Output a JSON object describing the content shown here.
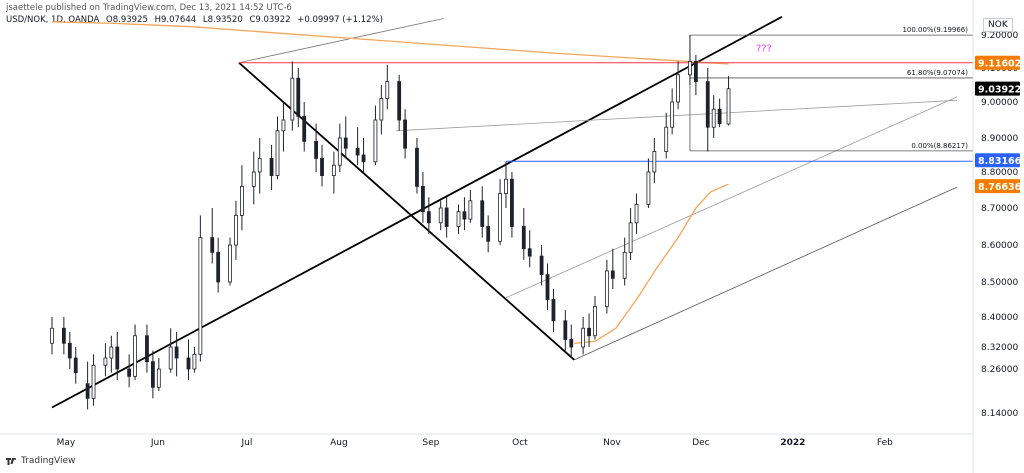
{
  "header": {
    "published": "jsaettele published on TradingView.com, Dec 13, 2021 14:52 UTC-6"
  },
  "symbol": {
    "name": "USD/NOK, 1D, OANDA",
    "open": "O8.93925",
    "high": "H9.07644",
    "low": "L8.93520",
    "close": "C9.03922",
    "change": "+0.09997 (+1.12%)"
  },
  "brand": {
    "logo_text": "TradingView"
  },
  "chart_data": {
    "type": "candlestick",
    "title": "",
    "currency_label": "NOK",
    "x_axis": {
      "labels": [
        "May",
        "Jun",
        "Jul",
        "Aug",
        "Sep",
        "Oct",
        "Nov",
        "Dec",
        "2022",
        "Feb"
      ],
      "bold_labels": [
        "2022"
      ]
    },
    "y_axis": {
      "ticks": [
        9.2,
        9.1,
        9.0,
        8.9,
        8.8,
        8.7,
        8.6,
        8.5,
        8.4,
        8.32,
        8.26,
        8.14
      ],
      "tick_labels": [
        "9.20000",
        "9.10000",
        "9.00000",
        "8.90000",
        "8.80000",
        "8.70000",
        "8.60000",
        "8.50000",
        "8.40000",
        "8.32000",
        "8.26000",
        "8.14000"
      ],
      "range": [
        8.08,
        9.25
      ]
    },
    "price_tags": [
      {
        "value": 9.11602,
        "label": "9.11602",
        "color": "#f57c00"
      },
      {
        "value": 9.03922,
        "label": "9.03922",
        "color": "#000000"
      },
      {
        "value": 8.83166,
        "label": "8.83166",
        "color": "#2962ff"
      },
      {
        "value": 8.76636,
        "label": "8.76636",
        "color": "#f57c00"
      }
    ],
    "horizontal_lines": [
      {
        "value": 9.11602,
        "color": "#f23645",
        "from": "2021-07-01"
      },
      {
        "value": 8.83166,
        "color": "#2962ff",
        "from": "2021-09-29"
      }
    ],
    "fibonacci": {
      "from_date": "2021-11-30",
      "levels": [
        {
          "label": "100.00%(9.19966)",
          "value": 9.19966
        },
        {
          "label": "61.80%(9.07074)",
          "value": 9.07074
        },
        {
          "label": "0.00%(8.86217)",
          "value": 8.86217
        }
      ]
    },
    "annotation": {
      "text": "???",
      "color": "#e040fb"
    },
    "trendlines": [
      {
        "name": "",
        "points": [
          [
            "2021-04-29",
            8.155
          ],
          [
            "2021-12-31",
            9.255
          ]
        ],
        "color": "#000000",
        "width": 1.8
      },
      {
        "name": "",
        "points": [
          [
            "2021-07-01",
            9.116
          ],
          [
            "2021-10-22",
            8.285
          ]
        ],
        "color": "#000000",
        "width": 1.8
      },
      {
        "name": "",
        "points": [
          [
            "2021-07-01",
            9.116
          ],
          [
            "2021-09-08",
            9.25
          ]
        ],
        "color": "#777777",
        "width": 0.8
      },
      {
        "name": "",
        "points": [
          [
            "2021-08-23",
            8.92
          ],
          [
            "2022-02-28",
            9.005
          ]
        ],
        "color": "#999999",
        "width": 0.8
      },
      {
        "name": "",
        "points": [
          [
            "2021-09-29",
            8.455
          ],
          [
            "2022-02-28",
            9.015
          ]
        ],
        "color": "#999999",
        "width": 0.8
      },
      {
        "name": "",
        "points": [
          [
            "2021-10-22",
            8.285
          ],
          [
            "2022-02-28",
            8.758
          ]
        ],
        "color": "#555555",
        "width": 0.8
      }
    ],
    "moving_averages": [
      {
        "name": "",
        "color": "#f5a55a",
        "points": [
          [
            "2021-04-29",
            9.24
          ],
          [
            "2021-05-20",
            9.235
          ],
          [
            "2021-06-15",
            9.225
          ],
          [
            "2021-07-15",
            9.205
          ],
          [
            "2021-08-15",
            9.185
          ],
          [
            "2021-09-15",
            9.165
          ],
          [
            "2021-10-15",
            9.145
          ],
          [
            "2021-11-15",
            9.128
          ],
          [
            "2021-12-13",
            9.112
          ]
        ]
      },
      {
        "name": "",
        "color": "#f5a55a",
        "points": [
          [
            "2021-10-22",
            8.33
          ],
          [
            "2021-10-29",
            8.335
          ],
          [
            "2021-11-05",
            8.37
          ],
          [
            "2021-11-12",
            8.45
          ],
          [
            "2021-11-19",
            8.54
          ],
          [
            "2021-11-26",
            8.62
          ],
          [
            "2021-12-02",
            8.7
          ],
          [
            "2021-12-07",
            8.745
          ],
          [
            "2021-12-13",
            8.766
          ]
        ]
      }
    ],
    "candles": [
      {
        "date": "2021-04-29",
        "o": 8.33,
        "h": 8.4,
        "l": 8.3,
        "c": 8.37
      },
      {
        "date": "2021-05-03",
        "o": 8.37,
        "h": 8.4,
        "l": 8.3,
        "c": 8.33
      },
      {
        "date": "2021-05-05",
        "o": 8.33,
        "h": 8.36,
        "l": 8.26,
        "c": 8.29
      },
      {
        "date": "2021-05-07",
        "o": 8.29,
        "h": 8.32,
        "l": 8.22,
        "c": 8.25
      },
      {
        "date": "2021-05-11",
        "o": 8.22,
        "h": 8.28,
        "l": 8.15,
        "c": 8.18
      },
      {
        "date": "2021-05-13",
        "o": 8.18,
        "h": 8.3,
        "l": 8.16,
        "c": 8.27
      },
      {
        "date": "2021-05-17",
        "o": 8.27,
        "h": 8.33,
        "l": 8.24,
        "c": 8.29
      },
      {
        "date": "2021-05-19",
        "o": 8.29,
        "h": 8.35,
        "l": 8.25,
        "c": 8.32
      },
      {
        "date": "2021-05-21",
        "o": 8.32,
        "h": 8.36,
        "l": 8.23,
        "c": 8.26
      },
      {
        "date": "2021-05-25",
        "o": 8.26,
        "h": 8.3,
        "l": 8.21,
        "c": 8.24
      },
      {
        "date": "2021-05-27",
        "o": 8.24,
        "h": 8.38,
        "l": 8.23,
        "c": 8.35
      },
      {
        "date": "2021-05-31",
        "o": 8.35,
        "h": 8.38,
        "l": 8.25,
        "c": 8.28
      },
      {
        "date": "2021-06-02",
        "o": 8.28,
        "h": 8.31,
        "l": 8.18,
        "c": 8.21
      },
      {
        "date": "2021-06-04",
        "o": 8.21,
        "h": 8.29,
        "l": 8.2,
        "c": 8.26
      },
      {
        "date": "2021-06-08",
        "o": 8.26,
        "h": 8.37,
        "l": 8.25,
        "c": 8.32
      },
      {
        "date": "2021-06-10",
        "o": 8.32,
        "h": 8.36,
        "l": 8.24,
        "c": 8.29
      },
      {
        "date": "2021-06-14",
        "o": 8.29,
        "h": 8.34,
        "l": 8.23,
        "c": 8.26
      },
      {
        "date": "2021-06-16",
        "o": 8.26,
        "h": 8.32,
        "l": 8.25,
        "c": 8.3
      },
      {
        "date": "2021-06-18",
        "o": 8.3,
        "h": 8.68,
        "l": 8.28,
        "c": 8.62
      },
      {
        "date": "2021-06-22",
        "o": 8.62,
        "h": 8.7,
        "l": 8.55,
        "c": 8.58
      },
      {
        "date": "2021-06-24",
        "o": 8.58,
        "h": 8.62,
        "l": 8.47,
        "c": 8.5
      },
      {
        "date": "2021-06-28",
        "o": 8.5,
        "h": 8.62,
        "l": 8.49,
        "c": 8.6
      },
      {
        "date": "2021-06-30",
        "o": 8.6,
        "h": 8.72,
        "l": 8.56,
        "c": 8.68
      },
      {
        "date": "2021-07-02",
        "o": 8.68,
        "h": 8.82,
        "l": 8.64,
        "c": 8.76
      },
      {
        "date": "2021-07-06",
        "o": 8.76,
        "h": 8.86,
        "l": 8.71,
        "c": 8.8
      },
      {
        "date": "2021-07-08",
        "o": 8.8,
        "h": 8.9,
        "l": 8.74,
        "c": 8.84
      },
      {
        "date": "2021-07-12",
        "o": 8.84,
        "h": 8.88,
        "l": 8.75,
        "c": 8.79
      },
      {
        "date": "2021-07-14",
        "o": 8.79,
        "h": 8.96,
        "l": 8.78,
        "c": 8.92
      },
      {
        "date": "2021-07-16",
        "o": 8.92,
        "h": 9.0,
        "l": 8.86,
        "c": 8.95
      },
      {
        "date": "2021-07-19",
        "o": 8.95,
        "h": 9.12,
        "l": 8.92,
        "c": 9.07
      },
      {
        "date": "2021-07-21",
        "o": 9.07,
        "h": 9.1,
        "l": 8.93,
        "c": 8.96
      },
      {
        "date": "2021-07-23",
        "o": 8.96,
        "h": 9.0,
        "l": 8.86,
        "c": 8.89
      },
      {
        "date": "2021-07-27",
        "o": 8.89,
        "h": 8.94,
        "l": 8.8,
        "c": 8.84
      },
      {
        "date": "2021-07-29",
        "o": 8.84,
        "h": 8.88,
        "l": 8.76,
        "c": 8.79
      },
      {
        "date": "2021-08-02",
        "o": 8.79,
        "h": 8.86,
        "l": 8.74,
        "c": 8.82
      },
      {
        "date": "2021-08-04",
        "o": 8.82,
        "h": 8.94,
        "l": 8.8,
        "c": 8.9
      },
      {
        "date": "2021-08-06",
        "o": 8.9,
        "h": 8.96,
        "l": 8.84,
        "c": 8.87
      },
      {
        "date": "2021-08-10",
        "o": 8.87,
        "h": 8.93,
        "l": 8.82,
        "c": 8.85
      },
      {
        "date": "2021-08-12",
        "o": 8.85,
        "h": 8.9,
        "l": 8.8,
        "c": 8.83
      },
      {
        "date": "2021-08-16",
        "o": 8.83,
        "h": 8.99,
        "l": 8.82,
        "c": 8.95
      },
      {
        "date": "2021-08-18",
        "o": 8.95,
        "h": 9.05,
        "l": 8.91,
        "c": 9.01
      },
      {
        "date": "2021-08-20",
        "o": 9.01,
        "h": 9.11,
        "l": 8.98,
        "c": 9.06
      },
      {
        "date": "2021-08-24",
        "o": 9.06,
        "h": 9.08,
        "l": 8.92,
        "c": 8.95
      },
      {
        "date": "2021-08-26",
        "o": 8.95,
        "h": 8.98,
        "l": 8.84,
        "c": 8.87
      },
      {
        "date": "2021-08-30",
        "o": 8.87,
        "h": 8.9,
        "l": 8.74,
        "c": 8.76
      },
      {
        "date": "2021-09-01",
        "o": 8.76,
        "h": 8.8,
        "l": 8.66,
        "c": 8.69
      },
      {
        "date": "2021-09-03",
        "o": 8.69,
        "h": 8.73,
        "l": 8.63,
        "c": 8.66
      },
      {
        "date": "2021-09-07",
        "o": 8.66,
        "h": 8.72,
        "l": 8.64,
        "c": 8.7
      },
      {
        "date": "2021-09-09",
        "o": 8.7,
        "h": 8.73,
        "l": 8.62,
        "c": 8.65
      },
      {
        "date": "2021-09-13",
        "o": 8.65,
        "h": 8.71,
        "l": 8.63,
        "c": 8.69
      },
      {
        "date": "2021-09-15",
        "o": 8.69,
        "h": 8.73,
        "l": 8.64,
        "c": 8.67
      },
      {
        "date": "2021-09-17",
        "o": 8.67,
        "h": 8.75,
        "l": 8.66,
        "c": 8.72
      },
      {
        "date": "2021-09-21",
        "o": 8.72,
        "h": 8.76,
        "l": 8.62,
        "c": 8.65
      },
      {
        "date": "2021-09-23",
        "o": 8.65,
        "h": 8.68,
        "l": 8.58,
        "c": 8.61
      },
      {
        "date": "2021-09-27",
        "o": 8.61,
        "h": 8.78,
        "l": 8.6,
        "c": 8.74
      },
      {
        "date": "2021-09-29",
        "o": 8.74,
        "h": 8.83,
        "l": 8.7,
        "c": 8.78
      },
      {
        "date": "2021-10-01",
        "o": 8.78,
        "h": 8.8,
        "l": 8.62,
        "c": 8.65
      },
      {
        "date": "2021-10-05",
        "o": 8.65,
        "h": 8.7,
        "l": 8.56,
        "c": 8.59
      },
      {
        "date": "2021-10-07",
        "o": 8.59,
        "h": 8.64,
        "l": 8.54,
        "c": 8.57
      },
      {
        "date": "2021-10-11",
        "o": 8.57,
        "h": 8.6,
        "l": 8.49,
        "c": 8.52
      },
      {
        "date": "2021-10-13",
        "o": 8.52,
        "h": 8.55,
        "l": 8.42,
        "c": 8.45
      },
      {
        "date": "2021-10-15",
        "o": 8.45,
        "h": 8.48,
        "l": 8.36,
        "c": 8.39
      },
      {
        "date": "2021-10-19",
        "o": 8.39,
        "h": 8.42,
        "l": 8.31,
        "c": 8.34
      },
      {
        "date": "2021-10-21",
        "o": 8.34,
        "h": 8.38,
        "l": 8.29,
        "c": 8.32
      },
      {
        "date": "2021-10-25",
        "o": 8.32,
        "h": 8.4,
        "l": 8.3,
        "c": 8.37
      },
      {
        "date": "2021-10-27",
        "o": 8.37,
        "h": 8.41,
        "l": 8.32,
        "c": 8.35
      },
      {
        "date": "2021-10-29",
        "o": 8.35,
        "h": 8.46,
        "l": 8.34,
        "c": 8.43
      },
      {
        "date": "2021-11-02",
        "o": 8.43,
        "h": 8.56,
        "l": 8.41,
        "c": 8.53
      },
      {
        "date": "2021-11-04",
        "o": 8.53,
        "h": 8.59,
        "l": 8.48,
        "c": 8.51
      },
      {
        "date": "2021-11-08",
        "o": 8.51,
        "h": 8.62,
        "l": 8.49,
        "c": 8.58
      },
      {
        "date": "2021-11-10",
        "o": 8.58,
        "h": 8.7,
        "l": 8.56,
        "c": 8.66
      },
      {
        "date": "2021-11-12",
        "o": 8.66,
        "h": 8.74,
        "l": 8.63,
        "c": 8.71
      },
      {
        "date": "2021-11-16",
        "o": 8.71,
        "h": 8.84,
        "l": 8.7,
        "c": 8.8
      },
      {
        "date": "2021-11-18",
        "o": 8.8,
        "h": 8.9,
        "l": 8.77,
        "c": 8.86
      },
      {
        "date": "2021-11-22",
        "o": 8.86,
        "h": 8.97,
        "l": 8.84,
        "c": 8.93
      },
      {
        "date": "2021-11-24",
        "o": 8.93,
        "h": 9.04,
        "l": 8.91,
        "c": 9.0
      },
      {
        "date": "2021-11-26",
        "o": 9.0,
        "h": 9.12,
        "l": 8.98,
        "c": 9.08
      },
      {
        "date": "2021-11-30",
        "o": 9.08,
        "h": 9.2,
        "l": 9.05,
        "c": 9.12
      },
      {
        "date": "2021-12-02",
        "o": 9.12,
        "h": 9.14,
        "l": 9.02,
        "c": 9.06
      },
      {
        "date": "2021-12-06",
        "o": 9.06,
        "h": 9.1,
        "l": 8.86,
        "c": 8.93
      },
      {
        "date": "2021-12-08",
        "o": 8.93,
        "h": 9.02,
        "l": 8.9,
        "c": 8.98
      },
      {
        "date": "2021-12-10",
        "o": 8.98,
        "h": 9.01,
        "l": 8.93,
        "c": 8.94
      },
      {
        "date": "2021-12-13",
        "o": 8.939,
        "h": 9.076,
        "l": 8.935,
        "c": 9.039
      }
    ]
  }
}
